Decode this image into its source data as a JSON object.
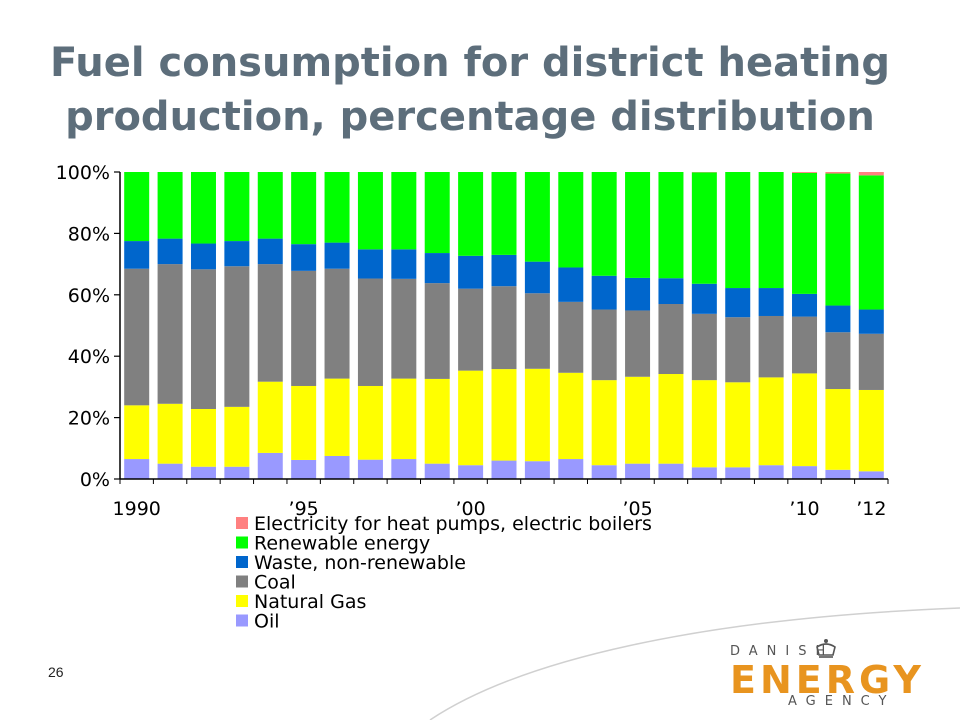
{
  "slide": {
    "title": "Fuel consumption for district heating production, percentage distribution",
    "page_number": "26"
  },
  "logo": {
    "line1": "DANISH",
    "line2": "ENERGY",
    "line3": "AGENCY",
    "primary_color": "#e8941f"
  },
  "chart_data": {
    "type": "bar",
    "stacked": true,
    "title": "",
    "xlabel": "",
    "ylabel": "",
    "ylim": [
      0,
      100
    ],
    "grid": false,
    "legend_position": "bottom",
    "y_ticks": [
      "0%",
      "20%",
      "40%",
      "60%",
      "80%",
      "100%"
    ],
    "x_tick_labels": [
      {
        "index": 0,
        "label": "1990"
      },
      {
        "index": 5,
        "label": "’95"
      },
      {
        "index": 10,
        "label": "’00"
      },
      {
        "index": 15,
        "label": "’05"
      },
      {
        "index": 20,
        "label": "’10"
      },
      {
        "index": 22,
        "label": "’12"
      }
    ],
    "categories": [
      "1990",
      "1991",
      "1992",
      "1993",
      "1994",
      "1995",
      "1996",
      "1997",
      "1998",
      "1999",
      "2000",
      "2001",
      "2002",
      "2003",
      "2004",
      "2005",
      "2006",
      "2007",
      "2008",
      "2009",
      "2010",
      "2011",
      "2012"
    ],
    "series": [
      {
        "name": "Oil",
        "color": "#9999ff",
        "values": [
          6.5,
          5,
          4,
          4,
          8.5,
          6.2,
          7.5,
          6.3,
          6.5,
          5,
          4.5,
          6,
          5.8,
          6.5,
          4.5,
          5,
          5,
          3.8,
          3.8,
          4.5,
          4.2,
          3,
          2.5
        ]
      },
      {
        "name": "Natural Gas",
        "color": "#ffff00",
        "values": [
          17.5,
          19.5,
          18.8,
          19.5,
          23.2,
          24.1,
          25.2,
          24,
          26.2,
          27.6,
          30.8,
          29.8,
          30.1,
          28.1,
          27.7,
          28.3,
          29.2,
          28.4,
          27.7,
          28.6,
          30.2,
          26.3,
          26.5
        ]
      },
      {
        "name": "Coal",
        "color": "#808080",
        "values": [
          44.5,
          45.5,
          45.5,
          45.8,
          38.3,
          37.5,
          35.8,
          35,
          32.5,
          31.2,
          26.7,
          27,
          24.6,
          23.1,
          23,
          21.6,
          22.8,
          21.6,
          21.2,
          20,
          18.5,
          18.5,
          18.3
        ]
      },
      {
        "name": "Waste, non-renewable",
        "color": "#0066cc",
        "values": [
          9,
          8.3,
          8.4,
          8.2,
          8.3,
          8.7,
          8.5,
          9.5,
          9.6,
          9.8,
          10.7,
          10.2,
          10.3,
          11.2,
          11,
          10.6,
          8.4,
          9.8,
          9.5,
          9.1,
          7.4,
          8.7,
          7.9
        ]
      },
      {
        "name": "Renewable energy",
        "color": "#00ff00",
        "values": [
          22.5,
          21.7,
          23.3,
          22.5,
          21.7,
          23.5,
          23,
          25.2,
          25.2,
          26.4,
          27.3,
          27,
          29.2,
          31.1,
          33.8,
          34.5,
          34.6,
          36.3,
          37.8,
          37.8,
          39.4,
          43,
          43.7
        ]
      },
      {
        "name": "Electricity for heat pumps, electric boilers",
        "color": "#ff8080",
        "values": [
          0,
          0,
          0,
          0,
          0,
          0,
          0,
          0,
          0,
          0,
          0,
          0,
          0,
          0,
          0,
          0,
          0,
          0.1,
          0,
          0,
          0.3,
          0.5,
          1.1
        ]
      }
    ]
  }
}
